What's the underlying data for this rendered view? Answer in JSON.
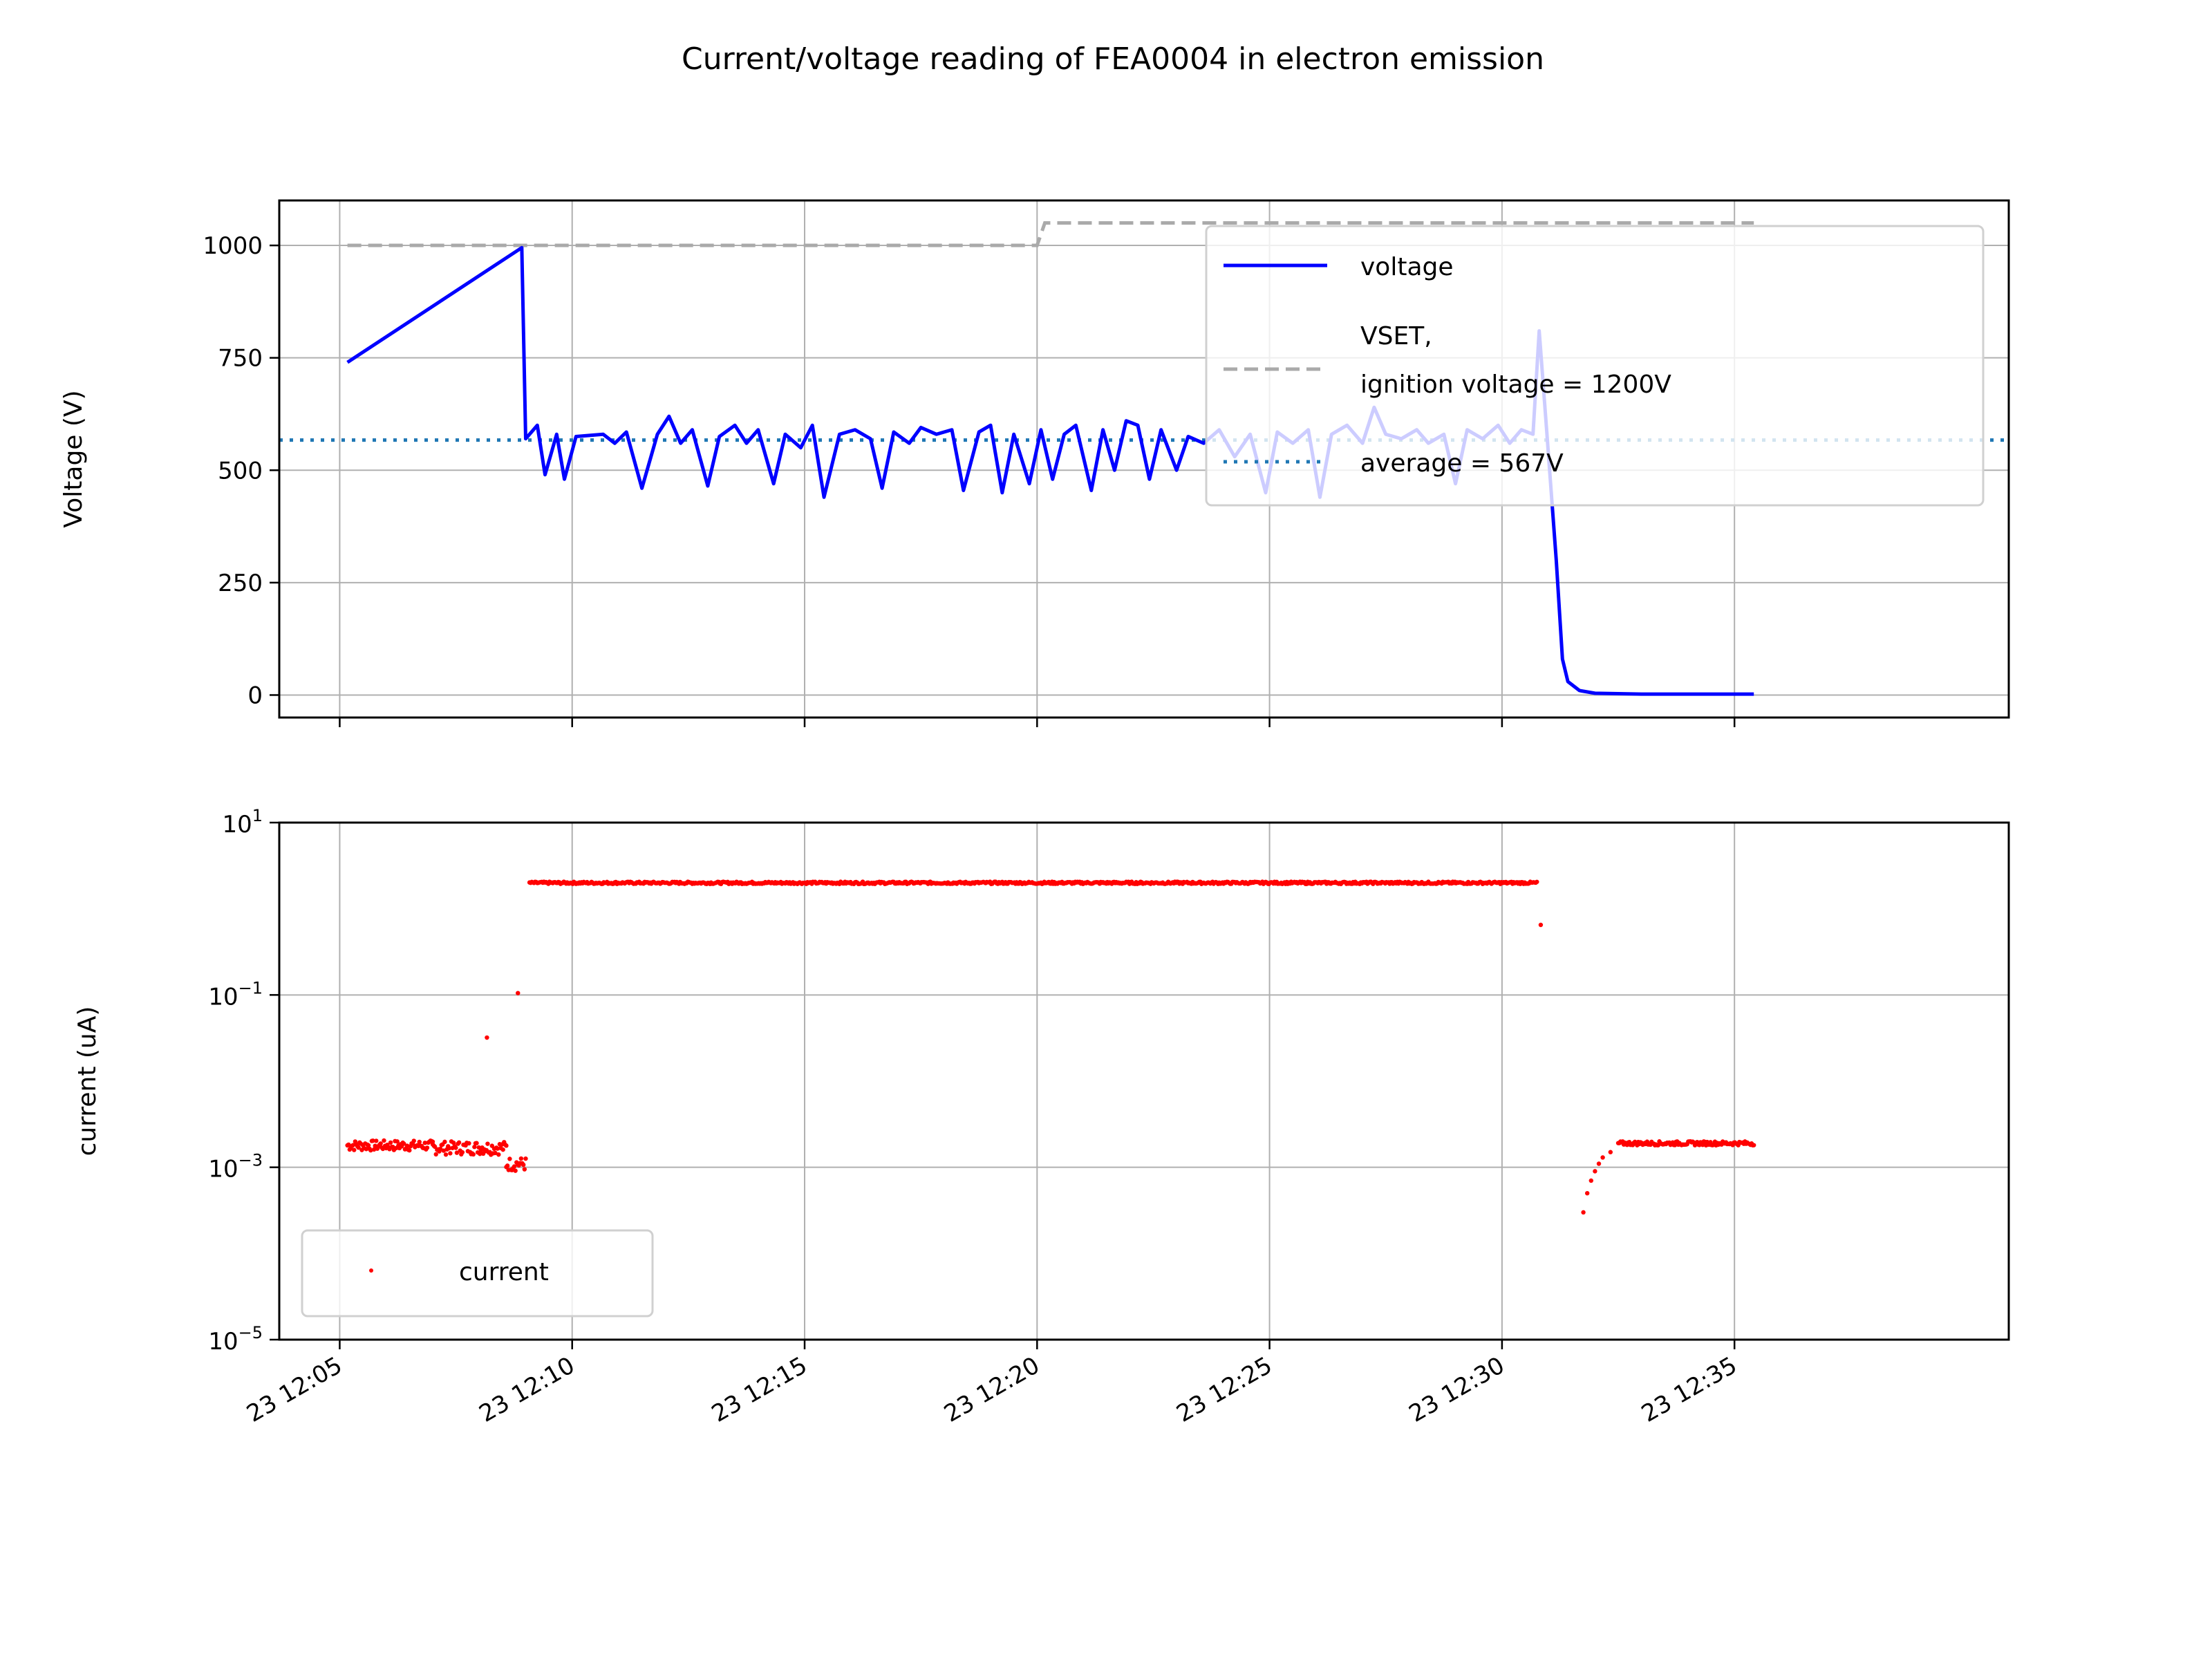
{
  "chart_data": {
    "title": "Current/voltage reading of FEA0004 in electron emission",
    "x_ticks": [
      "23 12:05",
      "23 12:10",
      "23 12:15",
      "23 12:20",
      "23 12:25",
      "23 12:30",
      "23 12:35"
    ],
    "x_range_minutes": [
      -1.3,
      35.9
    ],
    "colors": {
      "voltage": "#0000ff",
      "vset": "#aaaaaa",
      "average": "#1f77b4",
      "current": "#ff0000",
      "grid": "#b0b0b0"
    },
    "panels": [
      {
        "type": "line",
        "ylabel": "Voltage (V)",
        "ylim": [
          -50,
          1100
        ],
        "yticks": [
          0,
          250,
          500,
          750,
          1000
        ],
        "ytick_labels": [
          "0",
          "250",
          "500",
          "750",
          "1000"
        ],
        "grid": true,
        "legend_position": "upper right",
        "series": [
          {
            "name": "voltage",
            "style": "solid",
            "points": [
              {
                "x": "12:05:10",
                "y": 740
              },
              {
                "x": "12:08:55",
                "y": 995
              },
              {
                "x": "12:09:00",
                "y": 570
              },
              {
                "x": "12:09:15",
                "y": 600
              },
              {
                "x": "12:09:25",
                "y": 490
              },
              {
                "x": "12:09:40",
                "y": 580
              },
              {
                "x": "12:09:50",
                "y": 480
              },
              {
                "x": "12:10:05",
                "y": 575
              },
              {
                "x": "12:10:40",
                "y": 580
              },
              {
                "x": "12:10:55",
                "y": 560
              },
              {
                "x": "12:11:10",
                "y": 585
              },
              {
                "x": "12:11:30",
                "y": 460
              },
              {
                "x": "12:11:50",
                "y": 580
              },
              {
                "x": "12:12:05",
                "y": 620
              },
              {
                "x": "12:12:20",
                "y": 560
              },
              {
                "x": "12:12:35",
                "y": 590
              },
              {
                "x": "12:12:55",
                "y": 465
              },
              {
                "x": "12:13:10",
                "y": 575
              },
              {
                "x": "12:13:30",
                "y": 600
              },
              {
                "x": "12:13:45",
                "y": 560
              },
              {
                "x": "12:14:00",
                "y": 590
              },
              {
                "x": "12:14:20",
                "y": 470
              },
              {
                "x": "12:14:35",
                "y": 580
              },
              {
                "x": "12:14:55",
                "y": 550
              },
              {
                "x": "12:15:10",
                "y": 600
              },
              {
                "x": "12:15:25",
                "y": 440
              },
              {
                "x": "12:15:45",
                "y": 580
              },
              {
                "x": "12:16:05",
                "y": 590
              },
              {
                "x": "12:16:25",
                "y": 570
              },
              {
                "x": "12:16:40",
                "y": 460
              },
              {
                "x": "12:16:55",
                "y": 585
              },
              {
                "x": "12:17:15",
                "y": 560
              },
              {
                "x": "12:17:30",
                "y": 595
              },
              {
                "x": "12:17:50",
                "y": 580
              },
              {
                "x": "12:18:10",
                "y": 590
              },
              {
                "x": "12:18:25",
                "y": 455
              },
              {
                "x": "12:18:45",
                "y": 585
              },
              {
                "x": "12:19:00",
                "y": 600
              },
              {
                "x": "12:19:15",
                "y": 450
              },
              {
                "x": "12:19:30",
                "y": 580
              },
              {
                "x": "12:19:50",
                "y": 470
              },
              {
                "x": "12:20:05",
                "y": 590
              },
              {
                "x": "12:20:20",
                "y": 480
              },
              {
                "x": "12:20:35",
                "y": 580
              },
              {
                "x": "12:20:50",
                "y": 600
              },
              {
                "x": "12:21:10",
                "y": 455
              },
              {
                "x": "12:21:25",
                "y": 590
              },
              {
                "x": "12:21:40",
                "y": 500
              },
              {
                "x": "12:21:55",
                "y": 610
              },
              {
                "x": "12:22:10",
                "y": 600
              },
              {
                "x": "12:22:25",
                "y": 480
              },
              {
                "x": "12:22:40",
                "y": 590
              },
              {
                "x": "12:23:00",
                "y": 500
              },
              {
                "x": "12:23:15",
                "y": 575
              },
              {
                "x": "12:23:35",
                "y": 560
              },
              {
                "x": "12:23:55",
                "y": 590
              },
              {
                "x": "12:24:15",
                "y": 530
              },
              {
                "x": "12:24:35",
                "y": 580
              },
              {
                "x": "12:24:55",
                "y": 450
              },
              {
                "x": "12:25:10",
                "y": 585
              },
              {
                "x": "12:25:30",
                "y": 560
              },
              {
                "x": "12:25:50",
                "y": 590
              },
              {
                "x": "12:26:05",
                "y": 440
              },
              {
                "x": "12:26:20",
                "y": 580
              },
              {
                "x": "12:26:40",
                "y": 600
              },
              {
                "x": "12:27:00",
                "y": 560
              },
              {
                "x": "12:27:15",
                "y": 640
              },
              {
                "x": "12:27:30",
                "y": 580
              },
              {
                "x": "12:27:50",
                "y": 570
              },
              {
                "x": "12:28:10",
                "y": 590
              },
              {
                "x": "12:28:25",
                "y": 560
              },
              {
                "x": "12:28:45",
                "y": 580
              },
              {
                "x": "12:29:00",
                "y": 470
              },
              {
                "x": "12:29:15",
                "y": 590
              },
              {
                "x": "12:29:35",
                "y": 570
              },
              {
                "x": "12:29:55",
                "y": 600
              },
              {
                "x": "12:30:10",
                "y": 560
              },
              {
                "x": "12:30:25",
                "y": 590
              },
              {
                "x": "12:30:40",
                "y": 580
              },
              {
                "x": "12:30:48",
                "y": 810
              },
              {
                "x": "12:30:58",
                "y": 580
              },
              {
                "x": "12:31:10",
                "y": 300
              },
              {
                "x": "12:31:18",
                "y": 80
              },
              {
                "x": "12:31:25",
                "y": 30
              },
              {
                "x": "12:31:40",
                "y": 10
              },
              {
                "x": "12:32:00",
                "y": 4
              },
              {
                "x": "12:33:00",
                "y": 2
              },
              {
                "x": "12:35:25",
                "y": 2
              }
            ]
          },
          {
            "name": "VSET,\nignition voltage = 1200V",
            "name_lines": [
              "VSET,",
              "ignition voltage = 1200V"
            ],
            "style": "dashed",
            "points": [
              {
                "x": "12:05:10",
                "y": 1000
              },
              {
                "x": "12:20:00",
                "y": 1000
              },
              {
                "x": "12:20:10",
                "y": 1050
              },
              {
                "x": "12:35:25",
                "y": 1050
              }
            ]
          },
          {
            "name": "average = 567V",
            "style": "dotted",
            "y_constant": 567
          }
        ]
      },
      {
        "type": "scatter",
        "ylabel": "current (uA)",
        "yscale": "log",
        "ylim": [
          1e-05,
          10
        ],
        "ytick_exponents": [
          "1",
          "−1",
          "−3",
          "−5"
        ],
        "ytick_values": [
          10,
          0.1,
          0.001,
          1e-05
        ],
        "grid": true,
        "legend_position": "lower left",
        "series": [
          {
            "name": "current",
            "segments": [
              {
                "from": "12:05:10",
                "to": "12:07:00",
                "y": 0.0018,
                "spread": 0.00025
              },
              {
                "from": "12:07:00",
                "to": "12:08:35",
                "y": 0.0017,
                "spread": 0.0003
              },
              {
                "from": "12:08:35",
                "to": "12:09:00",
                "y": 0.0011,
                "spread": 0.0002
              },
              {
                "from": "12:09:05",
                "to": "12:30:45",
                "y": 2.0,
                "spread": 0.06
              },
              {
                "from": "12:32:30",
                "to": "12:35:25",
                "y": 0.0019,
                "spread": 0.0001
              }
            ],
            "points": [
              {
                "x": "12:08:10",
                "y": 0.032
              },
              {
                "x": "12:08:50",
                "y": 0.105
              },
              {
                "x": "12:30:50",
                "y": 0.65
              },
              {
                "x": "12:31:45",
                "y": 0.0003
              },
              {
                "x": "12:31:50",
                "y": 0.0005
              },
              {
                "x": "12:31:55",
                "y": 0.0007
              },
              {
                "x": "12:32:00",
                "y": 0.0009
              },
              {
                "x": "12:32:05",
                "y": 0.0011
              },
              {
                "x": "12:32:10",
                "y": 0.0013
              },
              {
                "x": "12:32:20",
                "y": 0.0015
              }
            ]
          }
        ]
      }
    ]
  }
}
